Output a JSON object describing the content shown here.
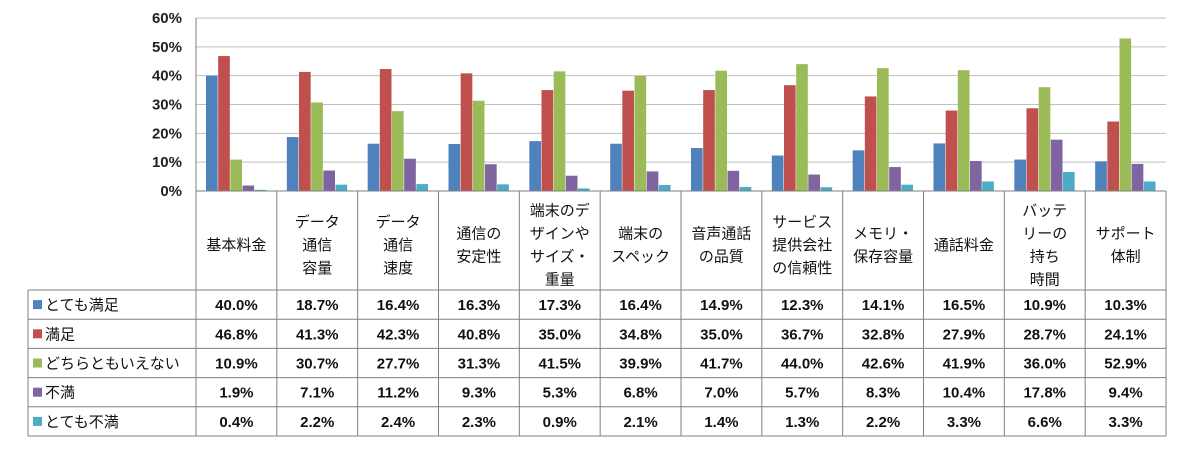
{
  "chart_data": {
    "type": "bar",
    "title": "",
    "xlabel": "",
    "ylabel": "",
    "ylim": [
      0,
      60
    ],
    "yticks": [
      "0%",
      "10%",
      "20%",
      "30%",
      "40%",
      "50%",
      "60%"
    ],
    "grid": true,
    "legend": "table-left",
    "categories": [
      [
        "基本料金"
      ],
      [
        "データ",
        "通信",
        "容量"
      ],
      [
        "データ",
        "通信",
        "速度"
      ],
      [
        "通信の",
        "安定性"
      ],
      [
        "端末のデ",
        "ザインや",
        "サイズ・",
        "重量"
      ],
      [
        "端末の",
        "スペック"
      ],
      [
        "音声通話",
        "の品質"
      ],
      [
        "サービス",
        "提供会社",
        "の信頼性"
      ],
      [
        "メモリ・",
        "保存容量"
      ],
      [
        "通話料金"
      ],
      [
        "バッテ",
        "リーの",
        "持ち",
        "時間"
      ],
      [
        "サポート",
        "体制"
      ]
    ],
    "series": [
      {
        "name": "とても満足",
        "color": "#4F81BD",
        "values": [
          40.0,
          18.7,
          16.4,
          16.3,
          17.3,
          16.4,
          14.9,
          12.3,
          14.1,
          16.5,
          10.9,
          10.3
        ],
        "labels": [
          "40.0%",
          "18.7%",
          "16.4%",
          "16.3%",
          "17.3%",
          "16.4%",
          "14.9%",
          "12.3%",
          "14.1%",
          "16.5%",
          "10.9%",
          "10.3%"
        ]
      },
      {
        "name": "満足",
        "color": "#C0504D",
        "values": [
          46.8,
          41.3,
          42.3,
          40.8,
          35.0,
          34.8,
          35.0,
          36.7,
          32.8,
          27.9,
          28.7,
          24.1
        ],
        "labels": [
          "46.8%",
          "41.3%",
          "42.3%",
          "40.8%",
          "35.0%",
          "34.8%",
          "35.0%",
          "36.7%",
          "32.8%",
          "27.9%",
          "28.7%",
          "24.1%"
        ]
      },
      {
        "name": "どちらともいえない",
        "color": "#9BBB59",
        "values": [
          10.9,
          30.7,
          27.7,
          31.3,
          41.5,
          39.9,
          41.7,
          44.0,
          42.6,
          41.9,
          36.0,
          52.9
        ],
        "labels": [
          "10.9%",
          "30.7%",
          "27.7%",
          "31.3%",
          "41.5%",
          "39.9%",
          "41.7%",
          "44.0%",
          "42.6%",
          "41.9%",
          "36.0%",
          "52.9%"
        ]
      },
      {
        "name": "不満",
        "color": "#8064A2",
        "values": [
          1.9,
          7.1,
          11.2,
          9.3,
          5.3,
          6.8,
          7.0,
          5.7,
          8.3,
          10.4,
          17.8,
          9.4
        ],
        "labels": [
          "1.9%",
          "7.1%",
          "11.2%",
          "9.3%",
          "5.3%",
          "6.8%",
          "7.0%",
          "5.7%",
          "8.3%",
          "10.4%",
          "17.8%",
          "9.4%"
        ]
      },
      {
        "name": "とても不満",
        "color": "#4BACC6",
        "values": [
          0.4,
          2.2,
          2.4,
          2.3,
          0.9,
          2.1,
          1.4,
          1.3,
          2.2,
          3.3,
          6.6,
          3.3
        ],
        "labels": [
          "0.4%",
          "2.2%",
          "2.4%",
          "2.3%",
          "0.9%",
          "2.1%",
          "1.4%",
          "1.3%",
          "2.2%",
          "3.3%",
          "6.6%",
          "3.3%"
        ]
      }
    ]
  }
}
